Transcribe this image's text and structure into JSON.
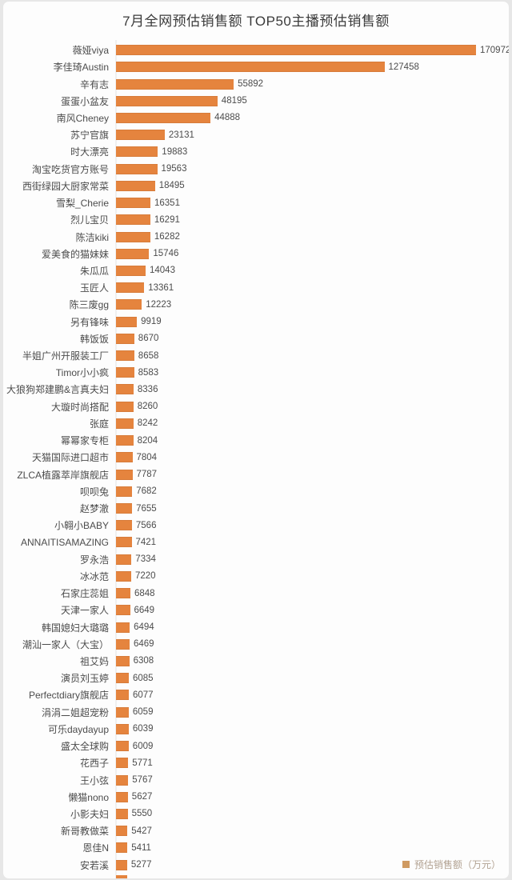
{
  "title": "7月全网预估销售额  TOP50主播预估销售额",
  "legend": {
    "label": "预估销售额（万元）",
    "swatch_color": "#cf9a62"
  },
  "colors": {
    "bar": "#e5843e",
    "card_background": "#fdfdfd",
    "page_background": "#e7e7e7",
    "title_text": "#3a3a3a",
    "label_text": "#4c4c4c",
    "legend_text": "#b2a292",
    "axis_line": "#f0f0f0"
  },
  "chart_data": {
    "type": "bar",
    "orientation": "horizontal",
    "title": "7月全网预估销售额  TOP50主播预估销售额",
    "unit": "万元",
    "legend_position": "bottom-right",
    "grid": false,
    "value_labels_shown": true,
    "xlim": [
      0,
      180000
    ],
    "partial_row_visible_at_bottom": true,
    "categories": [
      "薇娅viya",
      "李佳琦Austin",
      "辛有志",
      "蛋蛋小盆友",
      "南风Cheney",
      "苏宁官旗",
      "时大漂亮",
      "淘宝吃货官方账号",
      "西街绿园大厨家常菜",
      "雪梨_Cherie",
      "烈儿宝贝",
      "陈洁kiki",
      "爱美食的猫妹妹",
      "朱瓜瓜",
      "玉匠人",
      "陈三废gg",
      "另有锋味",
      "韩饭饭",
      "半姐广州开服装工厂",
      "Timor小小疯",
      "大狼狗郑建鹏&言真夫妇",
      "大璇时尚搭配",
      "张庭",
      "幂幂家专柜",
      "天猫国际进口超市",
      "ZLCA植露萃岸旗舰店",
      "呗呗兔",
      "赵梦澈",
      "小翱小BABY",
      "ANNAITISAMAZING",
      "罗永浩",
      "冰冰范",
      "石家庄蕊姐",
      "天津一家人",
      "韩国媳妇大璐璐",
      "潮汕一家人（大宝）",
      "祖艾妈",
      "演员刘玉婷",
      "Perfectdiary旗舰店",
      "涓涓二姐超宠粉",
      "可乐daydayup",
      "盛太全球购",
      "花西子",
      "王小弦",
      "懒猫nono",
      "小影夫妇",
      "新哥教做菜",
      "恩佳N",
      "安若溪"
    ],
    "values": [
      170972,
      127458,
      55892,
      48195,
      44888,
      23131,
      19883,
      19563,
      18495,
      16351,
      16291,
      16282,
      15746,
      14043,
      13361,
      12223,
      9919,
      8670,
      8658,
      8583,
      8336,
      8260,
      8242,
      8204,
      7804,
      7787,
      7682,
      7655,
      7566,
      7421,
      7334,
      7220,
      6848,
      6649,
      6494,
      6469,
      6308,
      6085,
      6077,
      6059,
      6039,
      6009,
      5771,
      5767,
      5627,
      5550,
      5427,
      5411,
      5277
    ]
  }
}
